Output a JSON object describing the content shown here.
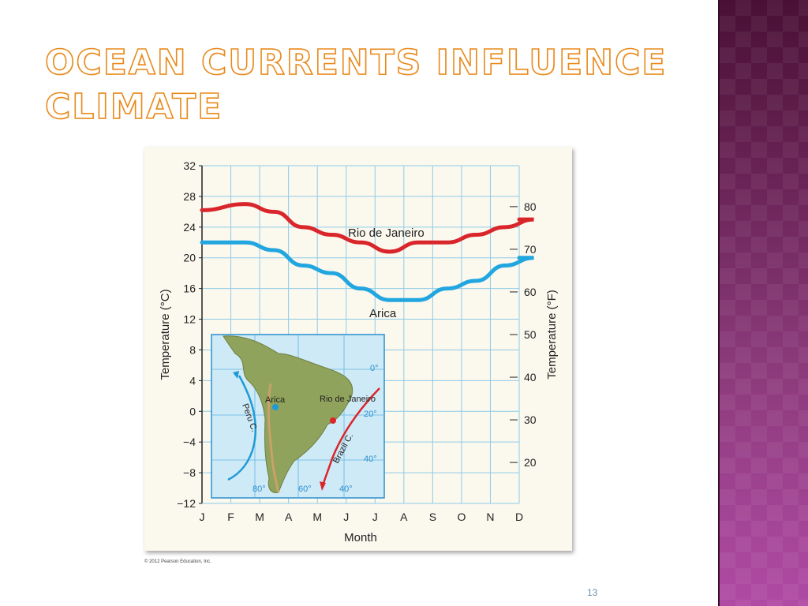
{
  "slide": {
    "title": "Ocean Currents Influence Climate",
    "copyright": "© 2012 Pearson Education, Inc.",
    "page_number": "13",
    "colors": {
      "title_outline": "#e88a1c",
      "sidebar": "#6a2457"
    }
  },
  "chart_data": {
    "type": "line",
    "categories": [
      "J",
      "F",
      "M",
      "A",
      "M",
      "J",
      "J",
      "A",
      "S",
      "O",
      "N",
      "D"
    ],
    "xlabel": "Month",
    "ylabel": "Temperature (°C)",
    "ylabel_right": "Temperature (°F)",
    "ylim": [
      -12,
      32
    ],
    "yticks": [
      "32",
      "28",
      "24",
      "20",
      "16",
      "12",
      "8",
      "4",
      "0",
      "−4",
      "−8",
      "−12"
    ],
    "yticks_right": [
      "80",
      "70",
      "60",
      "50",
      "40",
      "30",
      "20"
    ],
    "grid": true,
    "series": [
      {
        "name": "Rio de Janeiro",
        "color": "#d9262b",
        "values": [
          26.2,
          27.0,
          26.0,
          24.0,
          23.0,
          22.0,
          20.8,
          22.0,
          22.0,
          23.0,
          24.0,
          25.0
        ]
      },
      {
        "name": "Arica",
        "color": "#22a6e0",
        "values": [
          22.0,
          22.0,
          21.0,
          19.0,
          18.0,
          16.0,
          14.5,
          14.5,
          16.0,
          17.0,
          19.0,
          20.0
        ]
      }
    ],
    "inset_map": {
      "labels": {
        "arica": "Arica",
        "rio": "Rio de Janeiro",
        "peru_current": "Peru C.",
        "brazil_current": "Brazil C."
      },
      "latitudes": [
        "0°",
        "20°",
        "40°"
      ],
      "longitudes": [
        "80°",
        "60°",
        "40°"
      ]
    }
  }
}
